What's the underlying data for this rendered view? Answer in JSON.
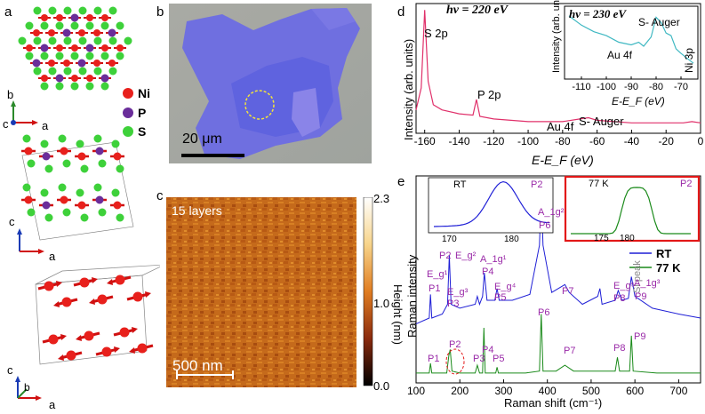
{
  "panels": {
    "a": "a",
    "b": "b",
    "c": "c",
    "d": "d",
    "e": "e"
  },
  "panel_a": {
    "legend": [
      {
        "label": "Ni",
        "color": "#e8201c"
      },
      {
        "label": "P",
        "color": "#6a2d9a"
      },
      {
        "label": "S",
        "color": "#3ed13a"
      }
    ],
    "axes_top": {
      "b": "b",
      "c": "c",
      "a": "a"
    },
    "axes_mid": {
      "c": "c",
      "a": "a"
    },
    "axes_bot": {
      "c": "c",
      "b": "b",
      "a": "a"
    }
  },
  "panel_b": {
    "scalebar": "20 μm"
  },
  "panel_c": {
    "label": "15 layers",
    "scalebar": "500 nm",
    "colorbar_title": "Height (nm)",
    "colorbar_ticks": [
      "2.3",
      "1.0",
      "0.0"
    ]
  },
  "panel_d": {
    "annotation_energy": "hν = 220 eV",
    "ylabel": "Intensity (arb. units)",
    "xlabel": "E-E_F (eV)",
    "peak_labels": [
      "S 2p",
      "P 2p",
      "Au 4f",
      "S- Auger"
    ],
    "x_ticks": [
      "-160",
      "-140",
      "-120",
      "-100",
      "-80",
      "-60",
      "-40",
      "-20",
      "0"
    ],
    "inset": {
      "annotation_energy": "hν = 230 eV",
      "ylabel": "Intensity (arb. units)",
      "xlabel": "E-E_F (eV)",
      "peak_labels": [
        "S- Auger",
        "Au 4f",
        "Ni 3p"
      ],
      "x_ticks": [
        "-110",
        "-100",
        "-90",
        "-80",
        "-70"
      ]
    }
  },
  "panel_e": {
    "ylabel": "Raman intensity",
    "xlabel": "Raman shift (cm⁻¹)",
    "x_ticks": [
      "100",
      "200",
      "300",
      "400",
      "500",
      "600",
      "700"
    ],
    "legend": [
      {
        "label": "RT",
        "color": "#1f1fd6"
      },
      {
        "label": "77 K",
        "color": "#1a8a1a"
      }
    ],
    "mode_labels_rt": [
      "E_g¹",
      "P1",
      "P2",
      "E_g²",
      "E_g³",
      "P3",
      "A_1g¹",
      "P4",
      "E_g⁴",
      "P5",
      "A_1g²",
      "P6",
      "P7",
      "Si peak",
      "E_g⁵",
      "P8",
      "A_1g³",
      "P9"
    ],
    "mode_labels_77k": [
      "P1",
      "P2",
      "P3",
      "P4",
      "P5",
      "P6",
      "P7",
      "P8",
      "P9"
    ],
    "inset_rt": {
      "label": "RT",
      "tag": "P2",
      "x_ticks": [
        "170",
        "180"
      ]
    },
    "inset_77k": {
      "label": "77 K",
      "tag": "P2",
      "x_ticks": [
        "175",
        "180"
      ]
    }
  },
  "chart_data": [
    {
      "type": "line",
      "ylabel": "Intensity (arb. units)",
      "xlabel": "E-E_F (eV)",
      "xlim": [
        -165,
        0
      ],
      "series": [
        {
          "x": [
            -165,
            -162,
            -160,
            -158,
            -155,
            -150,
            -140,
            -132,
            -130,
            -128,
            -120,
            -100,
            -85,
            -80,
            -70,
            -65,
            -60,
            -50,
            -40,
            -30,
            -20,
            -10,
            -5,
            0
          ],
          "y": [
            0.18,
            0.35,
            0.95,
            0.4,
            0.22,
            0.18,
            0.15,
            0.14,
            0.26,
            0.13,
            0.11,
            0.09,
            0.09,
            0.09,
            0.11,
            0.12,
            0.1,
            0.09,
            0.08,
            0.08,
            0.08,
            0.08,
            0.09,
            0.08
          ]
        }
      ]
    },
    {
      "type": "line",
      "xlabel": "E-E_F (eV)",
      "xlim": [
        -115,
        -65
      ],
      "series": [
        {
          "x": [
            -115,
            -110,
            -105,
            -100,
            -95,
            -90,
            -87,
            -85,
            -82,
            -80,
            -78,
            -76,
            -74,
            -72,
            -70,
            -67,
            -65
          ],
          "y": [
            0.92,
            0.78,
            0.68,
            0.62,
            0.52,
            0.48,
            0.52,
            0.46,
            0.6,
            0.9,
            0.82,
            0.66,
            0.62,
            0.42,
            0.35,
            0.26,
            0.2
          ]
        }
      ]
    },
    {
      "type": "line",
      "xlabel": "Raman shift (cm⁻¹)",
      "ylabel": "Raman intensity",
      "xlim": [
        100,
        750
      ],
      "series": [
        {
          "name": "RT",
          "x": [
            100,
            130,
            133,
            136,
            160,
            172,
            176,
            180,
            200,
            235,
            240,
            245,
            252,
            256,
            262,
            280,
            285,
            290,
            320,
            360,
            382,
            386,
            390,
            410,
            440,
            450,
            480,
            515,
            520,
            525,
            555,
            562,
            570,
            585,
            592,
            600,
            640,
            700,
            750
          ],
          "y": [
            0.3,
            0.33,
            0.45,
            0.33,
            0.35,
            0.4,
            0.65,
            0.4,
            0.38,
            0.4,
            0.44,
            0.4,
            0.44,
            0.56,
            0.42,
            0.42,
            0.48,
            0.42,
            0.42,
            0.45,
            0.7,
            0.98,
            0.7,
            0.46,
            0.5,
            0.46,
            0.4,
            0.44,
            0.48,
            0.4,
            0.42,
            0.47,
            0.42,
            0.43,
            0.54,
            0.44,
            0.38,
            0.35,
            0.33
          ]
        },
        {
          "name": "77 K",
          "x": [
            100,
            130,
            133,
            136,
            170,
            175,
            178,
            182,
            200,
            235,
            240,
            245,
            252,
            255,
            258,
            282,
            285,
            288,
            350,
            382,
            386,
            390,
            420,
            440,
            460,
            500,
            555,
            560,
            565,
            588,
            592,
            596,
            650,
            750
          ],
          "y": [
            0.05,
            0.05,
            0.1,
            0.05,
            0.05,
            0.14,
            0.17,
            0.06,
            0.05,
            0.05,
            0.09,
            0.05,
            0.05,
            0.28,
            0.05,
            0.05,
            0.08,
            0.05,
            0.05,
            0.06,
            0.35,
            0.06,
            0.06,
            0.09,
            0.06,
            0.06,
            0.06,
            0.13,
            0.06,
            0.06,
            0.24,
            0.06,
            0.05,
            0.05
          ]
        }
      ]
    }
  ]
}
